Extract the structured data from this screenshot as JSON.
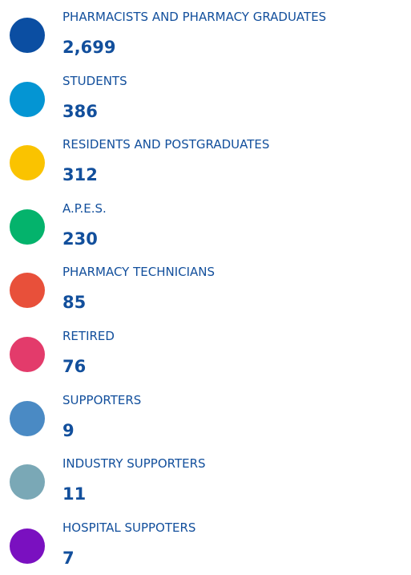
{
  "items": [
    {
      "label": "PHARMACISTS AND PHARMACY GRADUATES",
      "count": "2,699",
      "color": "#0b4ea2"
    },
    {
      "label": "STUDENTS",
      "count": "386",
      "color": "#0495d3"
    },
    {
      "label": "RESIDENTS AND POSTGRADUATES",
      "count": "312",
      "color": "#fac300"
    },
    {
      "label": "A.P.E.S.",
      "count": "230",
      "color": "#04b36c"
    },
    {
      "label": "PHARMACY TECHNICIANS",
      "count": "85",
      "color": "#e8503a"
    },
    {
      "label": "RETIRED",
      "count": "76",
      "color": "#e33b6b"
    },
    {
      "label": "SUPPORTERS",
      "count": "9",
      "color": "#4a8ac4"
    },
    {
      "label": "INDUSTRY SUPPORTERS",
      "count": "11",
      "color": "#7aa8b6"
    },
    {
      "label": "HOSPITAL SUPPOTERS",
      "count": "7",
      "color": "#7a10c0"
    }
  ]
}
